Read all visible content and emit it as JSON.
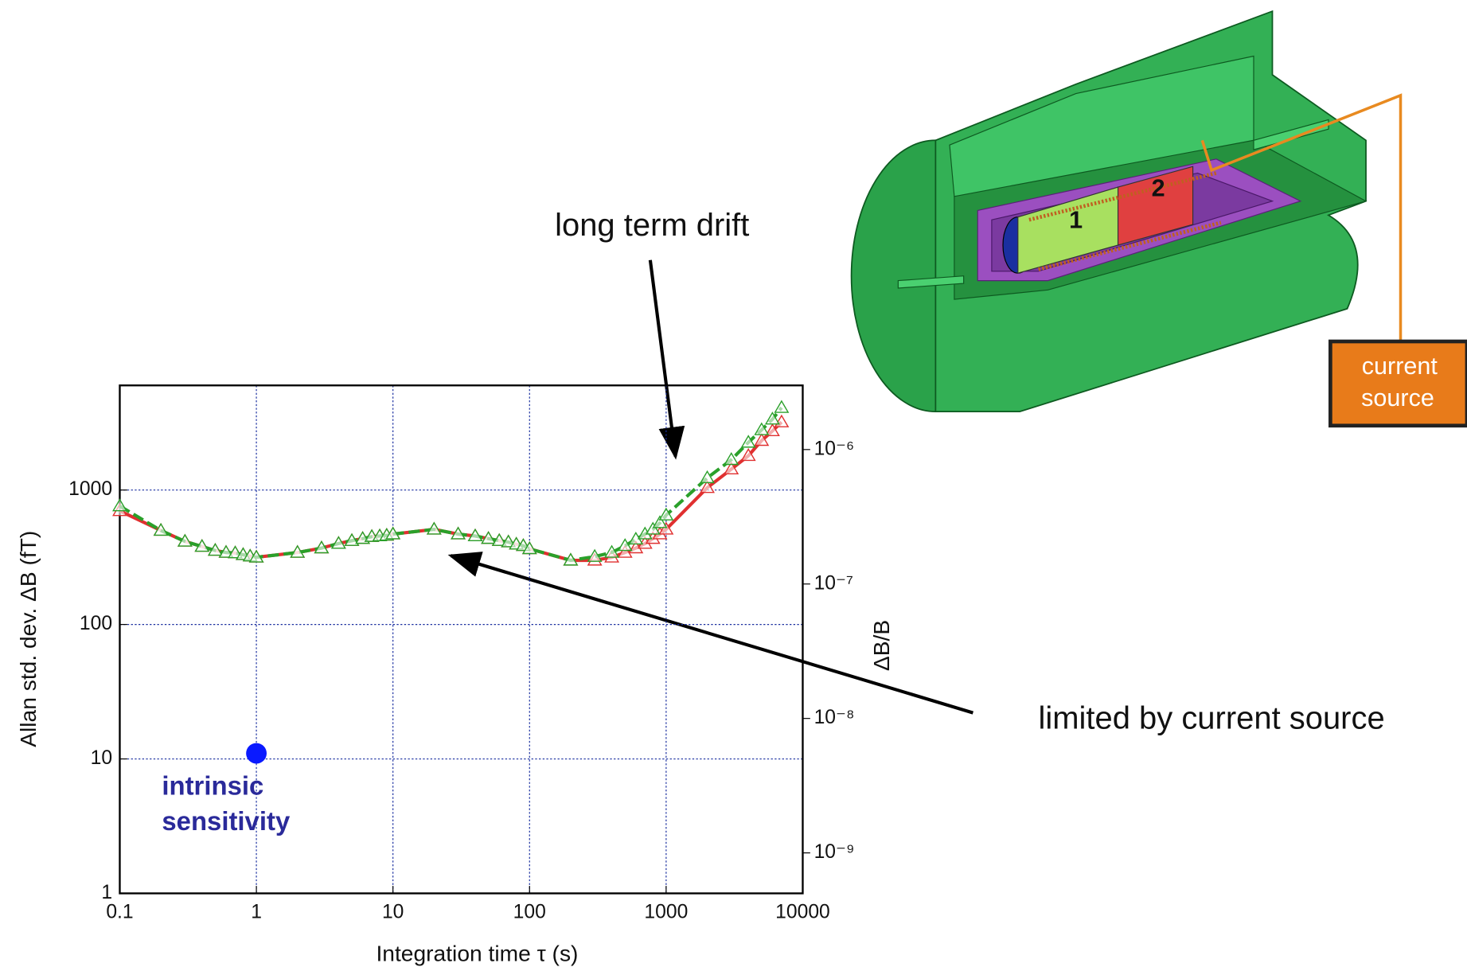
{
  "chart_data": {
    "type": "line",
    "x_label": "Integration time  τ (s)",
    "y_label": "Allan std. dev. ΔB (fT)",
    "y2_label": "ΔB/B",
    "log_x": true,
    "log_y": true,
    "grid": true,
    "grid_color": "#1a2fa0",
    "xlim": [
      0.1,
      10000
    ],
    "xticks": [
      0.1,
      1,
      10,
      100,
      1000,
      10000
    ],
    "ylim": [
      1,
      6000
    ],
    "yticks": [
      1,
      10,
      100,
      1000
    ],
    "y2lim": [
      5e-10,
      3e-06
    ],
    "y2ticks": [
      {
        "value": 1e-09,
        "label": "10⁻⁹"
      },
      {
        "value": 1e-08,
        "label": "10⁻⁸"
      },
      {
        "value": 1e-07,
        "label": "10⁻⁷"
      },
      {
        "value": 1e-06,
        "label": "10⁻⁶"
      }
    ],
    "series": [
      {
        "color": "#e03030",
        "dash": false,
        "x": [
          0.1,
          0.2,
          0.3,
          0.4,
          0.5,
          0.6,
          0.7,
          0.8,
          0.9,
          1,
          2,
          3,
          4,
          5,
          6,
          7,
          8,
          9,
          10,
          20,
          30,
          40,
          50,
          60,
          70,
          80,
          90,
          100,
          200,
          300,
          400,
          500,
          600,
          700,
          800,
          900,
          1000,
          2000,
          3000,
          4000,
          5000,
          6000,
          7000
        ],
        "values": [
          700,
          500,
          415,
          380,
          355,
          343,
          340,
          330,
          322,
          316,
          343,
          370,
          400,
          420,
          435,
          450,
          455,
          460,
          470,
          510,
          470,
          455,
          435,
          420,
          410,
          395,
          385,
          365,
          300,
          300,
          316,
          343,
          370,
          400,
          435,
          470,
          510,
          1040,
          1430,
          1800,
          2330,
          2750,
          3200
        ]
      },
      {
        "color": "#2aa02a",
        "dash": true,
        "x": [
          0.1,
          0.2,
          0.3,
          0.4,
          0.5,
          0.6,
          0.7,
          0.8,
          0.9,
          1,
          2,
          3,
          4,
          5,
          6,
          7,
          8,
          9,
          10,
          20,
          30,
          40,
          50,
          60,
          70,
          80,
          90,
          100,
          200,
          300,
          400,
          500,
          600,
          700,
          800,
          900,
          1000,
          2000,
          3000,
          4000,
          5000,
          6000,
          7000
        ],
        "values": [
          760,
          500,
          415,
          380,
          355,
          343,
          340,
          330,
          322,
          316,
          343,
          370,
          400,
          420,
          435,
          450,
          455,
          460,
          470,
          510,
          470,
          455,
          435,
          420,
          410,
          395,
          385,
          365,
          300,
          320,
          343,
          385,
          430,
          470,
          510,
          570,
          650,
          1230,
          1680,
          2260,
          2800,
          3360,
          4100
        ]
      }
    ],
    "point": {
      "x": 1,
      "value": 11,
      "color": "#0a1aff",
      "label": [
        "intrinsic",
        "sensitivity"
      ]
    },
    "annotations": [
      "long term drift",
      "limited by current source"
    ]
  },
  "diagram": {
    "coils": [
      "1",
      "2"
    ],
    "box": [
      "current",
      "source"
    ]
  }
}
